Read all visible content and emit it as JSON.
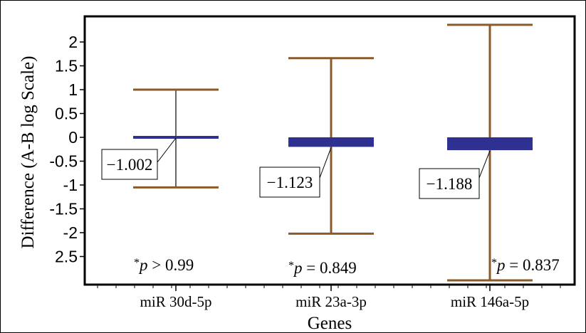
{
  "chart_data": {
    "type": "box",
    "xlabel": "Genes",
    "ylabel": "Difference (A-B log Scale)",
    "y_tick_labels": [
      "2",
      "1.5",
      "1",
      "0.5",
      "0",
      "-0.5",
      "-1",
      "-1.5",
      "-2",
      "2.5"
    ],
    "ylim": [
      -3.0,
      2.4
    ],
    "grid": false,
    "colors": {
      "whisker": "#8B5A2B",
      "box": "#2E3192",
      "frame": "#000000"
    },
    "categories": [
      "miR 30d-5p",
      "miR 23a-3p",
      "miR 146a-5p"
    ],
    "series": [
      {
        "category": "miR 30d-5p",
        "upper": 1.0,
        "lower": -1.05,
        "box_top": 0.0,
        "box_bottom": 0.0,
        "whisker_color": "#000000",
        "label": "−1.002",
        "p_prefix": "*",
        "p_symbol": "p",
        "p_rest": " > 0.99"
      },
      {
        "category": "miR 23a-3p",
        "upper": 1.66,
        "lower": -2.02,
        "box_top": 0.0,
        "box_bottom": -0.2,
        "whisker_color": "#8B5A2B",
        "label": "−1.123",
        "p_prefix": "*",
        "p_symbol": "p",
        "p_rest": " = 0.849"
      },
      {
        "category": "miR 146a-5p",
        "upper": 2.36,
        "lower": -3.0,
        "box_top": 0.0,
        "box_bottom": -0.27,
        "whisker_color": "#8B5A2B",
        "label": "−1.188",
        "p_prefix": "*",
        "p_symbol": "p",
        "p_rest": " = 0.837"
      }
    ]
  }
}
